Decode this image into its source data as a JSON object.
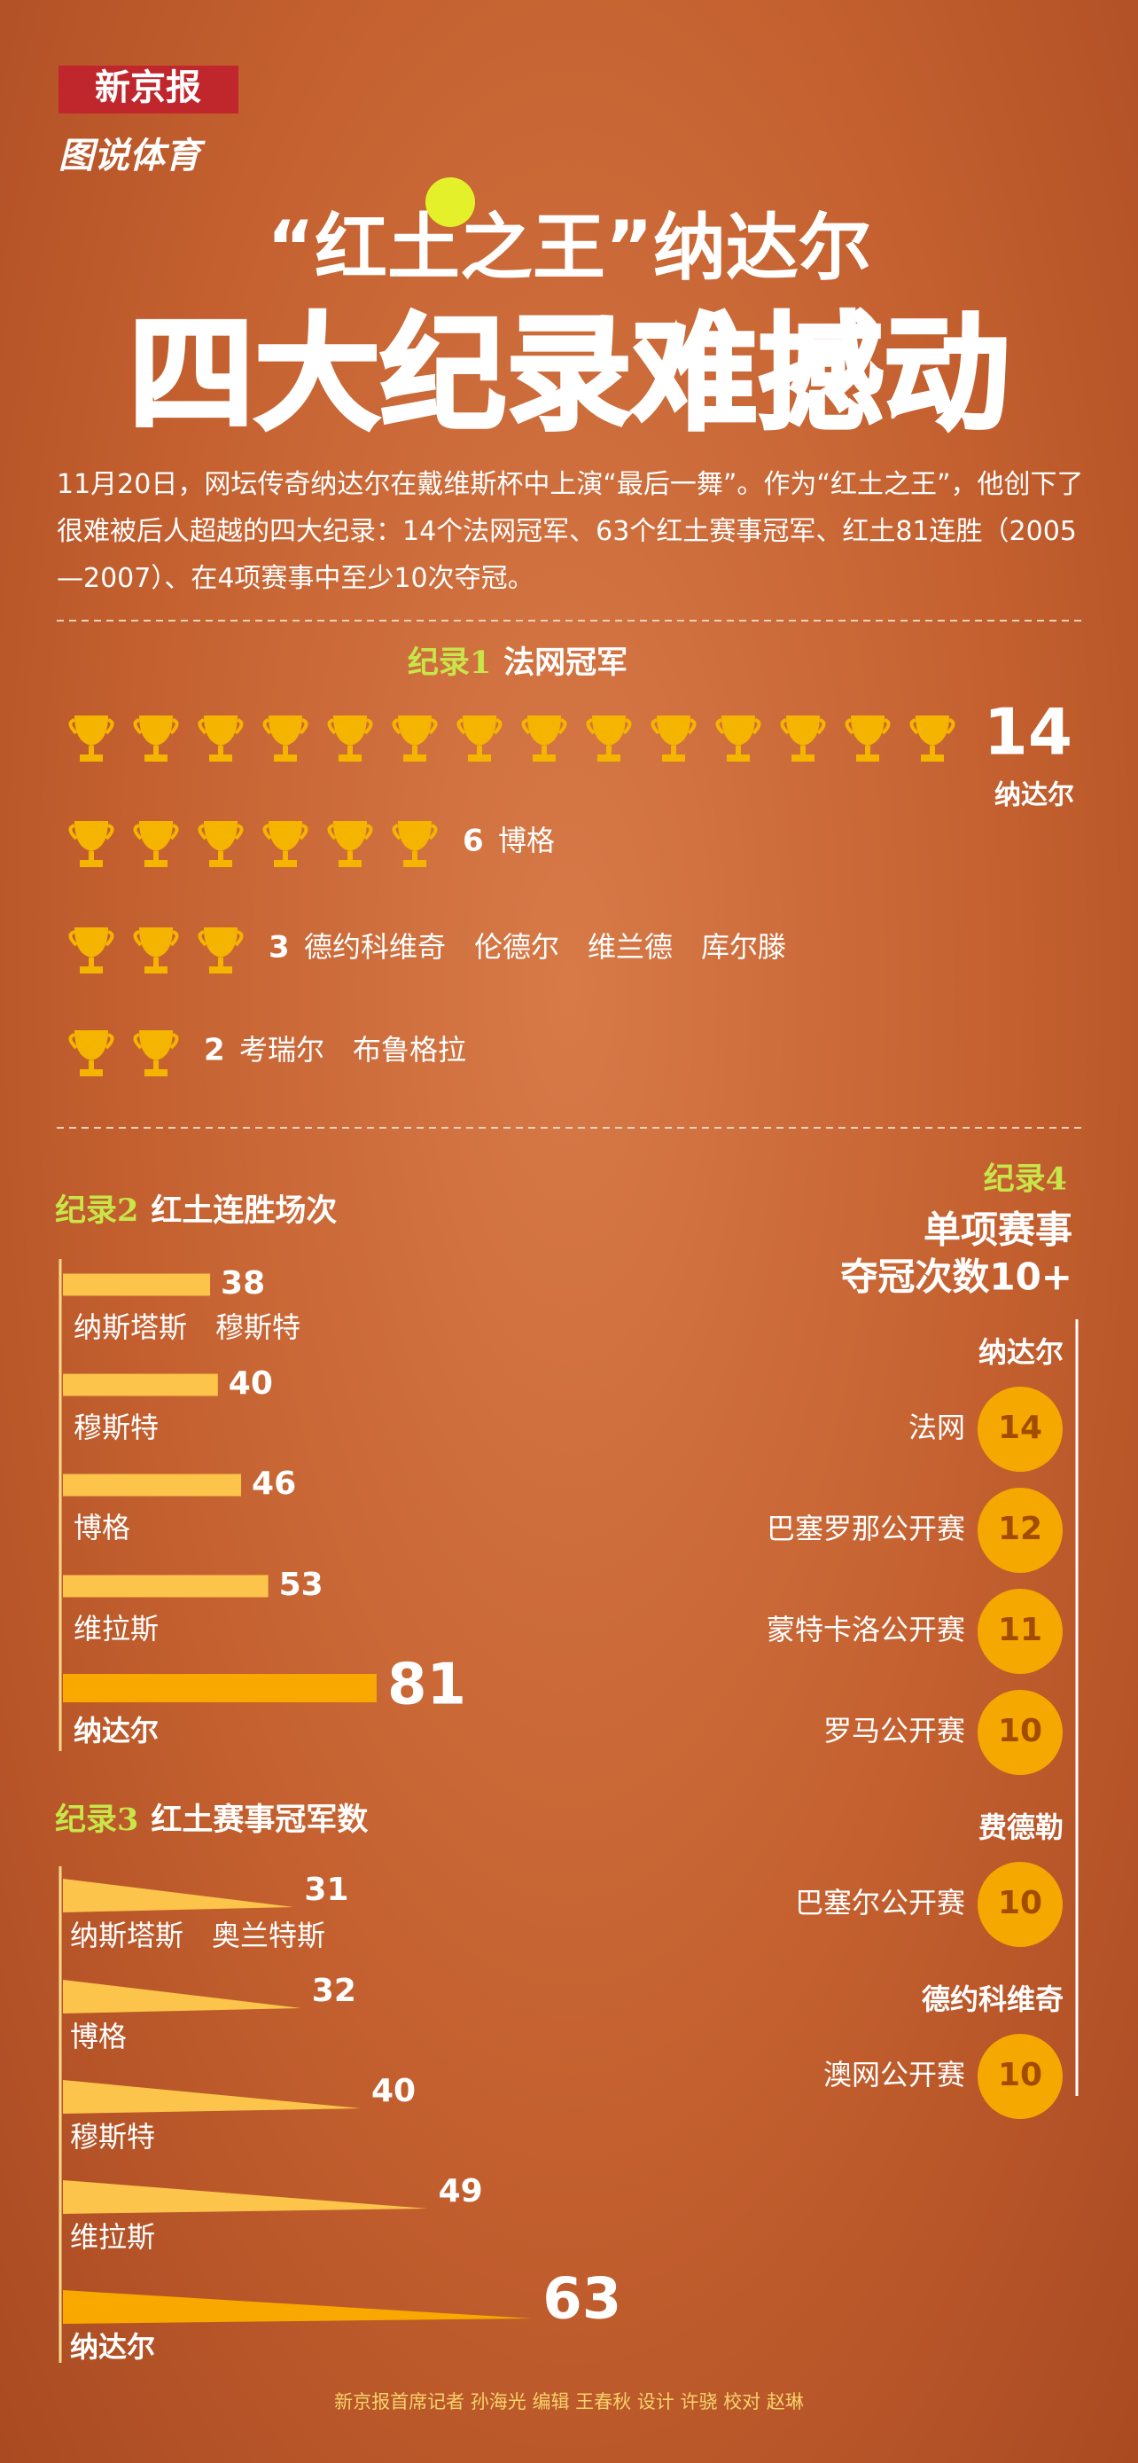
{
  "header": {
    "brand": "新京报",
    "column": "图说体育",
    "title_line1": "“红土之王”纳达尔",
    "title_line2": "四大纪录难撼动"
  },
  "intro": "11月20日，网坛传奇纳达尔在戴维斯杯中上演“最后一舞”。作为“红土之王”，他创下了很难被后人超越的四大纪录：14个法网冠军、63个红土赛事冠军、红土81连胜（2005—2007）、在4项赛事中至少10次夺冠。",
  "chart_data": [
    {
      "type": "pictogram",
      "label": "纪录1",
      "title": "法网冠军",
      "categories": [
        "纳达尔",
        "博格",
        "德约科维奇　伦德尔　维兰德　库尔滕",
        "考瑞尔　布鲁格拉"
      ],
      "values": [
        14,
        6,
        3,
        2
      ],
      "color": "#f5b400"
    },
    {
      "type": "bar",
      "label": "纪录2",
      "title": "红土连胜场次",
      "categories": [
        "纳斯塔斯　穆斯特",
        "穆斯特",
        "博格",
        "维拉斯",
        "纳达尔"
      ],
      "values": [
        38,
        40,
        46,
        53,
        81
      ],
      "color": "#fcc44a"
    },
    {
      "type": "wedge",
      "label": "纪录3",
      "title": "红土赛事冠军数",
      "categories": [
        "纳斯塔斯　奥兰特斯",
        "博格",
        "穆斯特",
        "维拉斯",
        "纳达尔"
      ],
      "values": [
        31,
        32,
        40,
        49,
        63
      ],
      "color": "#fcc44a"
    },
    {
      "type": "bubble",
      "label": "纪录4",
      "title": [
        "单项赛事",
        "夺冠次数10+"
      ],
      "color": "#f5a800",
      "groups": [
        {
          "name": "纳达尔",
          "categories": [
            "法网",
            "巴塞罗那公开赛",
            "蒙特卡洛公开赛",
            "罗马公开赛"
          ],
          "values": [
            14,
            12,
            11,
            10
          ]
        },
        {
          "name": "费德勒",
          "categories": [
            "巴塞尔公开赛"
          ],
          "values": [
            10
          ]
        },
        {
          "name": "德约科维奇",
          "categories": [
            "澳网公开赛"
          ],
          "values": [
            10
          ]
        }
      ]
    }
  ],
  "footer": "新京报首席记者 孙海光  编辑 王春秋  设计 许骁  校对 赵琳"
}
